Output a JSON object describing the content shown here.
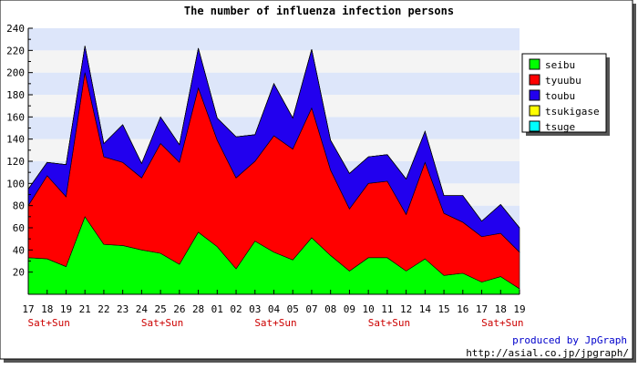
{
  "chart_data": {
    "type": "area",
    "stacked": true,
    "title": "The number of influenza infection persons",
    "x": [
      "17",
      "18",
      "19",
      "21",
      "22",
      "23",
      "24",
      "25",
      "26",
      "28",
      "01",
      "02",
      "03",
      "04",
      "05",
      "07",
      "08",
      "09",
      "10",
      "11",
      "12",
      "14",
      "15",
      "16",
      "17",
      "18",
      "19"
    ],
    "weekend_label": "Sat+Sun",
    "weekend_indices": [
      1,
      7,
      13,
      19,
      25
    ],
    "ylim": [
      0,
      240
    ],
    "yticks": [
      20,
      40,
      60,
      80,
      100,
      120,
      140,
      160,
      180,
      200,
      220,
      240
    ],
    "grid": true,
    "legend_position": "top-right",
    "series": [
      {
        "name": "seibu",
        "color": "#00ff00",
        "values": [
          33,
          32,
          25,
          70,
          45,
          44,
          40,
          37,
          27,
          56,
          43,
          23,
          48,
          38,
          31,
          51,
          35,
          21,
          33,
          33,
          21,
          32,
          17,
          19,
          11,
          16,
          5
        ]
      },
      {
        "name": "tyuubu",
        "color": "#ff0000",
        "values": [
          47,
          75,
          63,
          130,
          79,
          75,
          65,
          99,
          92,
          130,
          96,
          82,
          72,
          105,
          100,
          117,
          77,
          56,
          67,
          69,
          51,
          87,
          56,
          46,
          41,
          39,
          33
        ]
      },
      {
        "name": "toubu",
        "color": "#2200ee",
        "values": [
          15,
          12,
          29,
          24,
          12,
          34,
          13,
          24,
          16,
          36,
          20,
          37,
          24,
          47,
          28,
          53,
          27,
          32,
          24,
          24,
          32,
          28,
          16,
          24,
          14,
          26,
          22
        ]
      },
      {
        "name": "tsukigase",
        "color": "#ffff00",
        "values": [
          0,
          0,
          0,
          0,
          0,
          0,
          0,
          0,
          0,
          0,
          0,
          0,
          0,
          0,
          0,
          0,
          0,
          0,
          0,
          0,
          0,
          0,
          0,
          0,
          0,
          0,
          0
        ]
      },
      {
        "name": "tsuge",
        "color": "#00ffff",
        "values": [
          0,
          0,
          0,
          0,
          0,
          0,
          0,
          0,
          0,
          0,
          0,
          0,
          0,
          0,
          0,
          0,
          0,
          0,
          0,
          0,
          0,
          0,
          0,
          0,
          0,
          0,
          0
        ]
      }
    ]
  },
  "footer": {
    "credit": "produced by JpGraph",
    "url": "http://asial.co.jp/jpgraph/"
  }
}
